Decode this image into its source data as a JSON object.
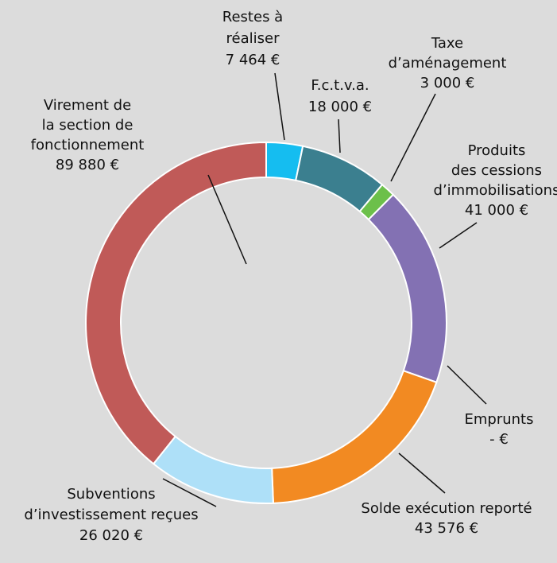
{
  "chart_data": {
    "type": "donut",
    "categories": [
      [
        "Restes à",
        "réaliser"
      ],
      [
        "F.c.t.v.a."
      ],
      [
        "Taxe",
        "d’aménagement"
      ],
      [
        "Produits",
        "des cessions",
        "d’immobilisations"
      ],
      [
        "Emprunts"
      ],
      [
        "Solde exécution reporté"
      ],
      [
        "Subventions",
        "d’investissement reçues"
      ],
      [
        "Virement de",
        "la section de",
        "fonctionnement"
      ]
    ],
    "values": [
      7464,
      18000,
      3000,
      41000,
      0,
      43576,
      26020,
      89880
    ],
    "value_labels": [
      "7 464 €",
      "18 000 €",
      "3 000 €",
      "41 000 €",
      "- €",
      "43 576 €",
      "26 020 €",
      "89 880 €"
    ],
    "colors": [
      "#15bdf0",
      "#3b7f8f",
      "#6cc04a",
      "#8371b3",
      "#4f81bd",
      "#f28a22",
      "#aee0f8",
      "#c05a58"
    ]
  }
}
